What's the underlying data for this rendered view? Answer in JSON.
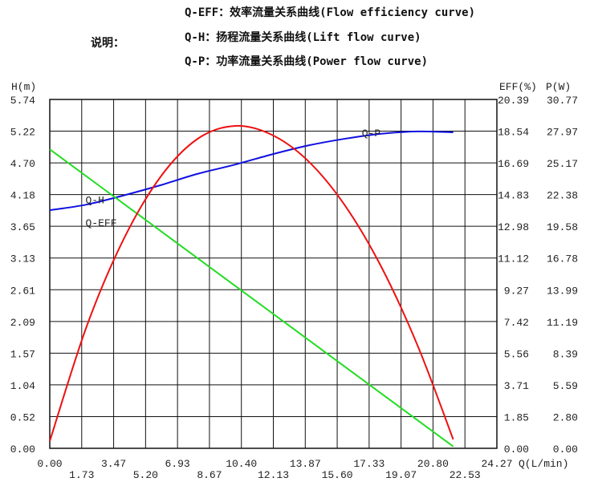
{
  "legend": {
    "heading": "说明：",
    "items": [
      "Q-EFF：效率流量关系曲线(Flow efficiency curve)",
      "Q-H：扬程流量关系曲线(Lift flow curve)",
      "Q-P：功率流量关系曲线(Power flow curve)"
    ]
  },
  "chart_data": {
    "type": "line",
    "title": "",
    "xlabel": "Q(L/min)",
    "y_left_label": "H(m)",
    "y_right_labels": [
      "EFF(%)",
      "P(W)"
    ],
    "xlim": [
      0,
      24.27
    ],
    "x_ticks": [
      "0.00",
      "1.73",
      "3.47",
      "5.20",
      "6.93",
      "8.67",
      "10.40",
      "12.13",
      "13.87",
      "15.60",
      "17.33",
      "19.07",
      "20.80",
      "22.53",
      "24.27"
    ],
    "h_ticks": [
      "0.00",
      "0.52",
      "1.04",
      "1.57",
      "2.09",
      "2.61",
      "3.13",
      "3.65",
      "4.18",
      "4.70",
      "5.22",
      "5.74"
    ],
    "eff_ticks": [
      "0.00",
      "1.85",
      "3.71",
      "5.56",
      "7.42",
      "9.27",
      "11.12",
      "12.98",
      "14.83",
      "16.69",
      "18.54",
      "20.39"
    ],
    "p_ticks": [
      "0.00",
      "2.80",
      "5.59",
      "8.39",
      "11.19",
      "13.99",
      "16.78",
      "19.58",
      "22.38",
      "25.17",
      "27.97",
      "30.77"
    ],
    "grid": true,
    "series": [
      {
        "axis": "P",
        "ymax": 30.77,
        "color": "#1010e0",
        "x": [
          0,
          2,
          4,
          6,
          8,
          10,
          12,
          14,
          16,
          18,
          20,
          21.9
        ],
        "y": [
          21.0,
          21.5,
          22.3,
          23.2,
          24.2,
          25.0,
          25.9,
          26.7,
          27.3,
          27.75,
          27.95,
          27.87
        ]
      },
      {
        "axis": "H",
        "ymax": 5.74,
        "color": "#22dd22",
        "x": [
          0,
          21.9
        ],
        "y": [
          4.92,
          0.03
        ]
      },
      {
        "axis": "EFF",
        "ymax": 20.39,
        "color": "#ee1111",
        "x": [
          0,
          2,
          4,
          6,
          8,
          10,
          12,
          14,
          16,
          18,
          20,
          21.9
        ],
        "y": [
          0.42,
          7.12,
          12.2,
          15.85,
          18.07,
          18.84,
          18.35,
          16.82,
          14.23,
          10.6,
          5.92,
          0.52
        ]
      }
    ],
    "annotations": [
      {
        "text": "Q-H",
        "x": 2.2,
        "h": 4.1
      },
      {
        "text": "Q-EFF",
        "x": 2.2,
        "h": 3.72
      },
      {
        "text": "Q-P",
        "x": 17.2,
        "h": 5.2
      }
    ]
  }
}
